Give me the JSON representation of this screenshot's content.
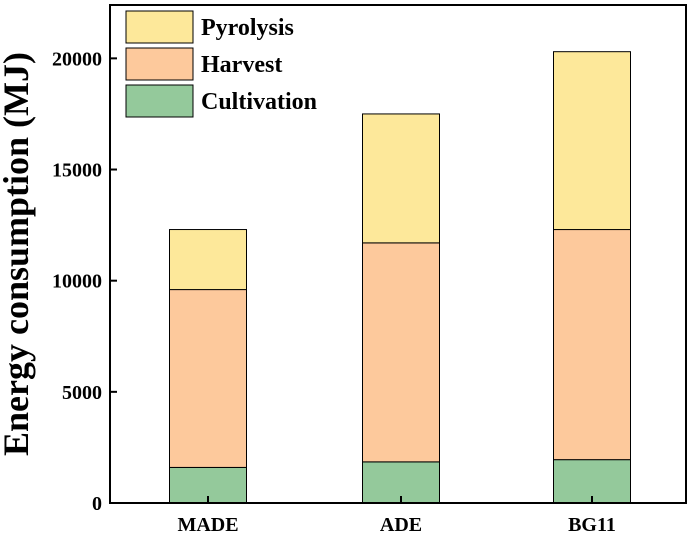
{
  "chart_data": {
    "type": "bar",
    "stacked": true,
    "title": "",
    "xlabel": "",
    "ylabel": "Energy consumption (MJ)",
    "categories": [
      "MADE",
      "ADE",
      "BG11"
    ],
    "ylim": [
      0,
      23000
    ],
    "yticks": [
      0,
      5000,
      10000,
      15000,
      20000
    ],
    "series": [
      {
        "name": "Cultivation",
        "color": "#94c99b",
        "values": [
          1600,
          1850,
          1950
        ]
      },
      {
        "name": "Harvest",
        "color": "#fdc99c",
        "values": [
          8000,
          9850,
          10350
        ]
      },
      {
        "name": "Pyrolysis",
        "color": "#fde89a",
        "values": [
          2700,
          5800,
          8000
        ]
      }
    ],
    "legend": {
      "position": "top-left",
      "order": [
        "Pyrolysis",
        "Harvest",
        "Cultivation"
      ]
    }
  }
}
